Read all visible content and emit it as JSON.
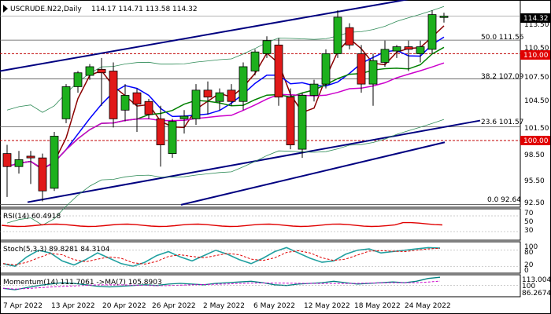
{
  "header": {
    "symbol_text": "USCRUDE.N22,Daily",
    "ohlc_text": "114.17 114.71 113.58 114.32"
  },
  "main": {
    "price_ticks": [
      "113.50",
      "110.50",
      "107.50",
      "104.50",
      "101.50",
      "98.50",
      "95.50",
      "92.50"
    ],
    "current_price": "114.32",
    "level_110": "110.00",
    "level_100": "100.00",
    "fib_labels": [
      "50.0 111.56",
      "38.2 107.09",
      "23.6 101.57",
      "0.0 92.64"
    ]
  },
  "rsi": {
    "title": "RSI(14) 60.4918",
    "ticks": [
      "70",
      "50",
      "30"
    ]
  },
  "stoch": {
    "title": "Stoch(5,3,3) 89.8281 84.3104",
    "ticks": [
      "100",
      "80",
      "20",
      "0"
    ]
  },
  "momentum": {
    "title": "Momentum(14) 111.7061 ->MA(7) 105.8903",
    "ticks": [
      "113.0043",
      "100",
      "86.2674"
    ]
  },
  "x_axis": {
    "labels": [
      "7 Apr 2022",
      "13 Apr 2022",
      "20 Apr 2022",
      "26 Apr 2022",
      "2 May 2022",
      "6 May 2022",
      "12 May 2022",
      "18 May 2022",
      "24 May 2022"
    ]
  },
  "colors": {
    "bull": "#1db01d",
    "bear": "#e11919",
    "fib_line": "#555555",
    "level_line": "#c00000",
    "channel": "#000080",
    "ma_short": "#8b0000",
    "ma_mid": "#0000ff",
    "ma_green": "#008000",
    "ma_magenta": "#cc00cc",
    "bollinger": "#2e8b57",
    "badge_red": "#e00000",
    "rsi_line": "#e00000",
    "stoch_main": "#20a0a0",
    "stoch_signal": "#e00000",
    "mom_main": "#008080",
    "mom_ma": "#cc00cc"
  },
  "chart_data": {
    "type": "candlestick",
    "symbol": "USCRUDE.N22",
    "timeframe": "Daily",
    "y_range": [
      92.5,
      116
    ],
    "candles": [
      {
        "o": 98.5,
        "h": 99.5,
        "l": 93.5,
        "c": 97.0
      },
      {
        "o": 97.0,
        "h": 98.8,
        "l": 96.2,
        "c": 97.8
      },
      {
        "o": 98.2,
        "h": 98.8,
        "l": 95.0,
        "c": 98.0
      },
      {
        "o": 98.0,
        "h": 98.5,
        "l": 93.0,
        "c": 94.2
      },
      {
        "o": 94.5,
        "h": 101.0,
        "l": 94.2,
        "c": 100.5
      },
      {
        "o": 102.5,
        "h": 106.5,
        "l": 102.0,
        "c": 106.2
      },
      {
        "o": 106.2,
        "h": 108.0,
        "l": 105.5,
        "c": 107.8
      },
      {
        "o": 107.5,
        "h": 108.8,
        "l": 107.0,
        "c": 108.5
      },
      {
        "o": 108.2,
        "h": 109.5,
        "l": 104.0,
        "c": 107.8
      },
      {
        "o": 108.0,
        "h": 109.0,
        "l": 101.5,
        "c": 102.5
      },
      {
        "o": 103.5,
        "h": 106.5,
        "l": 102.2,
        "c": 105.2
      },
      {
        "o": 105.5,
        "h": 106.0,
        "l": 101.0,
        "c": 104.2
      },
      {
        "o": 104.5,
        "h": 104.8,
        "l": 102.5,
        "c": 103.0
      },
      {
        "o": 102.5,
        "h": 104.0,
        "l": 97.0,
        "c": 99.5
      },
      {
        "o": 98.5,
        "h": 102.5,
        "l": 98.0,
        "c": 102.2
      },
      {
        "o": 102.5,
        "h": 103.5,
        "l": 100.8,
        "c": 102.8
      },
      {
        "o": 102.5,
        "h": 106.5,
        "l": 101.8,
        "c": 105.8
      },
      {
        "o": 105.8,
        "h": 106.8,
        "l": 103.0,
        "c": 105.0
      },
      {
        "o": 104.5,
        "h": 106.0,
        "l": 103.5,
        "c": 105.5
      },
      {
        "o": 105.8,
        "h": 106.5,
        "l": 104.0,
        "c": 104.5
      },
      {
        "o": 104.5,
        "h": 109.0,
        "l": 103.5,
        "c": 108.5
      },
      {
        "o": 108.0,
        "h": 110.5,
        "l": 107.5,
        "c": 110.2
      },
      {
        "o": 110.0,
        "h": 112.0,
        "l": 109.5,
        "c": 111.5
      },
      {
        "o": 111.0,
        "h": 111.8,
        "l": 104.0,
        "c": 105.0
      },
      {
        "o": 105.0,
        "h": 106.0,
        "l": 99.0,
        "c": 99.5
      },
      {
        "o": 99.0,
        "h": 105.5,
        "l": 98.0,
        "c": 105.2
      },
      {
        "o": 105.2,
        "h": 107.0,
        "l": 104.5,
        "c": 106.5
      },
      {
        "o": 106.5,
        "h": 110.5,
        "l": 106.0,
        "c": 110.0
      },
      {
        "o": 110.0,
        "h": 115.0,
        "l": 109.5,
        "c": 114.2
      },
      {
        "o": 113.0,
        "h": 113.5,
        "l": 110.5,
        "c": 111.0
      },
      {
        "o": 110.0,
        "h": 111.0,
        "l": 105.5,
        "c": 106.5
      },
      {
        "o": 106.5,
        "h": 110.0,
        "l": 104.0,
        "c": 109.2
      },
      {
        "o": 109.0,
        "h": 111.5,
        "l": 108.5,
        "c": 110.5
      },
      {
        "o": 110.3,
        "h": 111.0,
        "l": 109.5,
        "c": 110.8
      },
      {
        "o": 110.8,
        "h": 111.5,
        "l": 108.0,
        "c": 110.5
      },
      {
        "o": 110.0,
        "h": 111.5,
        "l": 109.0,
        "c": 110.8
      },
      {
        "o": 110.5,
        "h": 115.0,
        "l": 110.0,
        "c": 114.5
      },
      {
        "o": 114.17,
        "h": 114.71,
        "l": 113.58,
        "c": 114.32
      }
    ]
  }
}
